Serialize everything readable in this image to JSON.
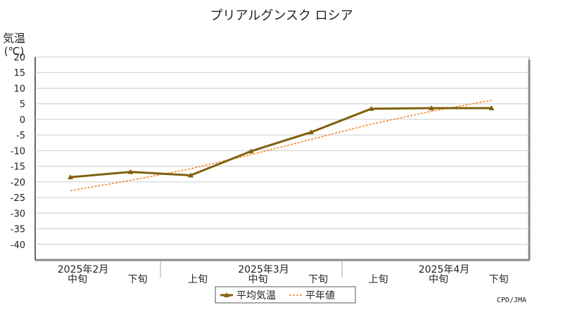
{
  "chart_data": {
    "type": "line",
    "title": "プリアルグンスク ロシア",
    "ylabel_line1": "気温",
    "ylabel_line2": "(℃)",
    "ylim": [
      -45,
      20
    ],
    "yticks": [
      20,
      15,
      10,
      5,
      0,
      -5,
      -10,
      -15,
      -20,
      -25,
      -30,
      -35,
      -40
    ],
    "categories": [
      "中旬",
      "下旬",
      "上旬",
      "中旬",
      "下旬",
      "上旬",
      "中旬",
      "下旬"
    ],
    "month_labels": [
      {
        "label": "2025年2月",
        "category_index": 0
      },
      {
        "label": "2025年3月",
        "category_index": 3
      },
      {
        "label": "2025年4月",
        "category_index": 6
      }
    ],
    "series": [
      {
        "name": "平均気温",
        "values": [
          -18.5,
          -16.8,
          -17.9,
          -10.2,
          -4.1,
          3.4,
          3.6,
          3.6
        ],
        "color": "#806010"
      },
      {
        "name": "平年値",
        "values": [
          -22.8,
          -19.5,
          -15.8,
          -11.3,
          -6.4,
          -1.5,
          2.6,
          6.1
        ],
        "color": "#f08020"
      }
    ],
    "grid": true,
    "legend_position": "bottom-center",
    "credit": "CPD/JMA"
  }
}
